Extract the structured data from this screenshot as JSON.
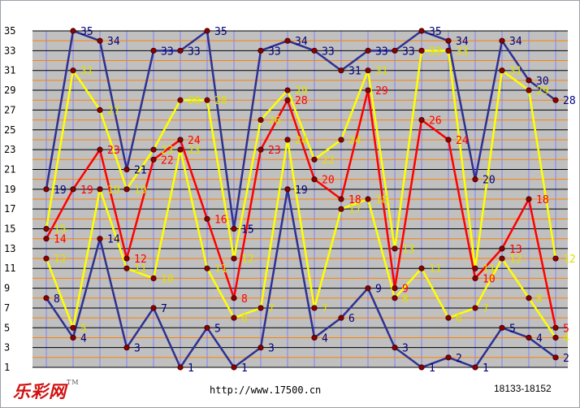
{
  "footer": {
    "logo_text": "乐彩网",
    "logo_mark": "TM",
    "url": "http://www.17500.cn",
    "issue_range": "18133-18152"
  },
  "chart_data": {
    "type": "line",
    "ylim": [
      1,
      35
    ],
    "yticks": [
      1,
      3,
      5,
      7,
      9,
      11,
      13,
      15,
      17,
      19,
      21,
      23,
      25,
      27,
      29,
      31,
      33,
      35
    ],
    "x": [
      1,
      2,
      3,
      4,
      5,
      6,
      7,
      8,
      9,
      10,
      11,
      12,
      13,
      14,
      15,
      16,
      17,
      18,
      19,
      20
    ],
    "grid": true,
    "series": [
      {
        "color": "#2e3192",
        "label_color": "#000080",
        "values": [
          19,
          35,
          34,
          21,
          33,
          33,
          35,
          15,
          33,
          34,
          33,
          31,
          33,
          33,
          35,
          34,
          20,
          34,
          30,
          28
        ]
      },
      {
        "color": "#ffff00",
        "label_color": "#e0e000",
        "values": [
          15,
          31,
          27,
          19,
          23,
          28,
          28,
          12,
          26,
          29,
          22,
          24,
          31,
          13,
          33,
          33,
          11,
          31,
          29,
          12
        ]
      },
      {
        "color": "#ff0000",
        "label_color": "#ff0000",
        "values": [
          14,
          19,
          23,
          12,
          22,
          24,
          16,
          8,
          23,
          28,
          20,
          18,
          29,
          9,
          26,
          24,
          10,
          13,
          18,
          5
        ]
      },
      {
        "color": "#ffff00",
        "label_color": "#e0e000",
        "values": [
          12,
          5,
          19,
          11,
          10,
          23,
          11,
          6,
          7,
          24,
          7,
          17,
          18,
          8,
          11,
          6,
          7,
          12,
          8,
          4
        ]
      },
      {
        "color": "#2e3192",
        "label_color": "#000080",
        "values": [
          8,
          4,
          14,
          3,
          7,
          1,
          5,
          1,
          3,
          19,
          4,
          6,
          9,
          3,
          1,
          2,
          1,
          5,
          4,
          2
        ]
      }
    ]
  }
}
